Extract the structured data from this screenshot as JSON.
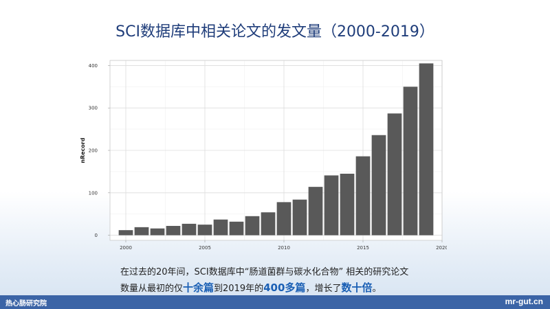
{
  "slide": {
    "title": "SCI数据库中相关论文的发文量（2000-2019）"
  },
  "chart_data": {
    "type": "bar",
    "ylabel": "nRecord",
    "xlabel": "",
    "x": [
      2000,
      2001,
      2002,
      2003,
      2004,
      2005,
      2006,
      2007,
      2008,
      2009,
      2010,
      2011,
      2012,
      2013,
      2014,
      2015,
      2016,
      2017,
      2018,
      2019
    ],
    "values": [
      12,
      19,
      16,
      22,
      27,
      25,
      37,
      32,
      45,
      54,
      78,
      84,
      114,
      141,
      145,
      186,
      236,
      287,
      350,
      405
    ],
    "xlim": [
      1999,
      2020
    ],
    "ylim": [
      -12,
      412
    ],
    "xticks": [
      2000,
      2005,
      2010,
      2015,
      2020
    ],
    "yticks": [
      0,
      100,
      200,
      300,
      400
    ],
    "grid": true,
    "bar_color": "#595959"
  },
  "caption": {
    "line1": "在过去的20年间，SCI数据库中“肠道菌群与碳水化合物” 相关的研究论文",
    "l2_a": "数量从最初的仅",
    "l2_h1": "十余篇",
    "l2_b": "到2019年的",
    "l2_h2": "400多篇",
    "l2_c": "，增长了",
    "l2_h3": "数十倍",
    "l2_d": "。"
  },
  "footer": {
    "left_text": "热心肠研究院",
    "right_text": "mr-gut.cn"
  }
}
